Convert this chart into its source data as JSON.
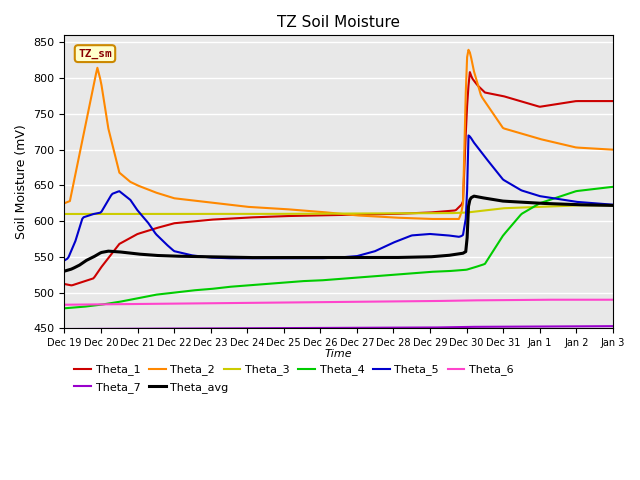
{
  "title": "TZ Soil Moisture",
  "ylabel": "Soil Moisture (mV)",
  "xlabel": "Time",
  "ylim": [
    450,
    860
  ],
  "yticks": [
    450,
    500,
    550,
    600,
    650,
    700,
    750,
    800,
    850
  ],
  "bg_color": "#e8e8e8",
  "legend_label": "TZ_sm",
  "series_colors": {
    "Theta_1": "#cc0000",
    "Theta_2": "#ff8800",
    "Theta_3": "#cccc00",
    "Theta_4": "#00cc00",
    "Theta_5": "#0000cc",
    "Theta_6": "#ff44cc",
    "Theta_7": "#9900cc",
    "Theta_avg": "#000000"
  },
  "x_tick_labels": [
    "Dec 19",
    "Dec 20",
    "Dec 21",
    "Dec 22",
    "Dec 23",
    "Dec 24",
    "Dec 25",
    "Dec 26",
    "Dec 27",
    "Dec 28",
    "Dec 29",
    "Dec 30",
    "Dec 31",
    "Jan 1",
    "Jan 2",
    "Jan 3"
  ]
}
